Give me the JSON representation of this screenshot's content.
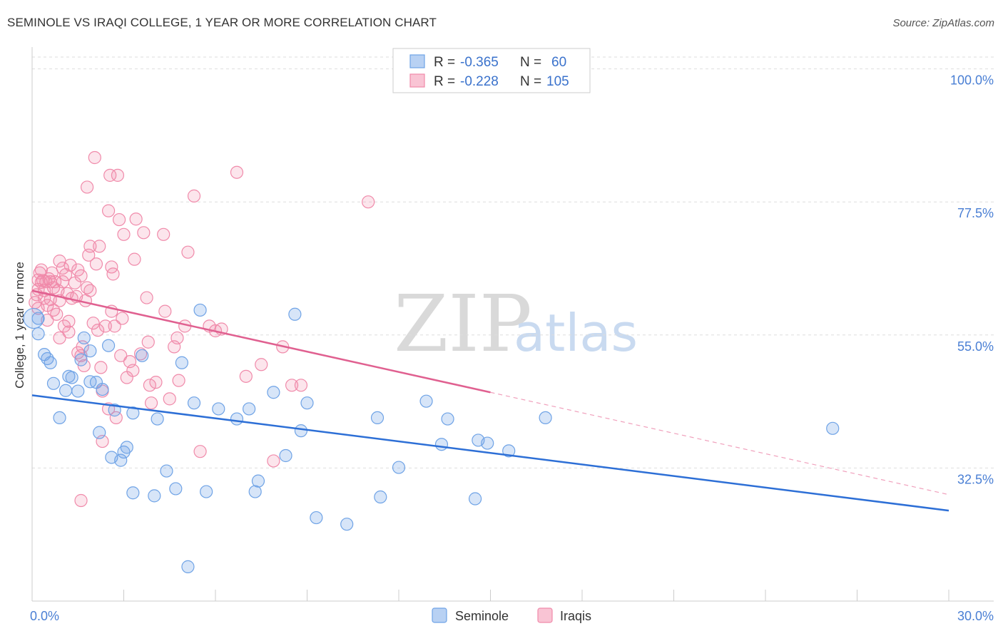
{
  "title": "SEMINOLE VS IRAQI COLLEGE, 1 YEAR OR MORE CORRELATION CHART",
  "source": "Source: ZipAtlas.com",
  "watermark": {
    "zip": "ZIP",
    "atlas": "atlas"
  },
  "colors": {
    "blue": "#6fa3e6",
    "blue_line": "#2d6fd6",
    "pink": "#f08aaa",
    "pink_line": "#e06090"
  },
  "legend": {
    "r_label": "R =",
    "n_label": "N =",
    "rows": [
      {
        "name": "Seminole",
        "r": "-0.365",
        "n": "60"
      },
      {
        "name": "Iraqis",
        "r": "-0.228",
        "n": "105"
      }
    ]
  },
  "chart_data": {
    "type": "scatter",
    "title": "SEMINOLE VS IRAQI COLLEGE, 1 YEAR OR MORE CORRELATION CHART",
    "xlabel": "",
    "ylabel": "College, 1 year or more",
    "xlim": [
      0,
      30
    ],
    "ylim": [
      10,
      102
    ],
    "x_tick_labels": [
      "0.0%",
      "30.0%"
    ],
    "y_ticks": [
      32.5,
      55.0,
      77.5,
      100.0
    ],
    "y_tick_labels": [
      "32.5%",
      "55.0%",
      "77.5%",
      "100.0%"
    ],
    "series": [
      {
        "name": "Seminole",
        "trend": {
          "x0": 0,
          "y0": 44.8,
          "x1": 30,
          "y1": 25.3
        },
        "points": [
          [
            0.2,
            57.8
          ],
          [
            0.2,
            55.2
          ],
          [
            0.4,
            51.7
          ],
          [
            0.5,
            51.0
          ],
          [
            0.6,
            50.3
          ],
          [
            0.7,
            46.8
          ],
          [
            0.9,
            41.0
          ],
          [
            1.1,
            45.6
          ],
          [
            1.2,
            48.0
          ],
          [
            1.3,
            47.8
          ],
          [
            1.5,
            45.5
          ],
          [
            1.6,
            50.8
          ],
          [
            1.7,
            54.5
          ],
          [
            1.9,
            47.1
          ],
          [
            1.9,
            52.3
          ],
          [
            2.1,
            47.0
          ],
          [
            2.2,
            38.5
          ],
          [
            2.3,
            45.8
          ],
          [
            2.5,
            53.2
          ],
          [
            2.6,
            34.3
          ],
          [
            2.7,
            42.3
          ],
          [
            2.9,
            33.8
          ],
          [
            3.0,
            35.2
          ],
          [
            3.1,
            36.0
          ],
          [
            3.3,
            41.8
          ],
          [
            3.3,
            28.3
          ],
          [
            3.6,
            51.5
          ],
          [
            4.0,
            27.8
          ],
          [
            4.1,
            40.8
          ],
          [
            4.4,
            32.0
          ],
          [
            4.7,
            29.0
          ],
          [
            4.9,
            50.3
          ],
          [
            5.1,
            15.8
          ],
          [
            5.3,
            43.5
          ],
          [
            5.5,
            59.2
          ],
          [
            5.7,
            28.5
          ],
          [
            6.1,
            42.5
          ],
          [
            6.7,
            40.8
          ],
          [
            7.1,
            42.5
          ],
          [
            7.3,
            28.5
          ],
          [
            7.4,
            30.3
          ],
          [
            7.9,
            45.3
          ],
          [
            8.3,
            34.6
          ],
          [
            8.6,
            58.5
          ],
          [
            8.8,
            38.8
          ],
          [
            9.0,
            43.5
          ],
          [
            9.3,
            24.1
          ],
          [
            10.3,
            23.0
          ],
          [
            11.3,
            41.0
          ],
          [
            11.4,
            27.6
          ],
          [
            12.0,
            32.6
          ],
          [
            12.9,
            43.8
          ],
          [
            13.4,
            36.5
          ],
          [
            13.6,
            40.8
          ],
          [
            14.5,
            27.3
          ],
          [
            14.6,
            37.2
          ],
          [
            14.9,
            36.7
          ],
          [
            15.6,
            35.4
          ],
          [
            16.8,
            41.0
          ],
          [
            26.2,
            39.2
          ]
        ]
      },
      {
        "name": "Iraqis",
        "trend": {
          "x0": 0,
          "y0": 62.5,
          "x1": 15.0,
          "y1": 45.3
        },
        "trend_dashed": {
          "x0": 15.0,
          "y0": 45.3,
          "x1": 30,
          "y1": 28.0
        },
        "points": [
          [
            0.1,
            60.5
          ],
          [
            0.15,
            61.8
          ],
          [
            0.2,
            62.7
          ],
          [
            0.2,
            59.5
          ],
          [
            0.2,
            64.3
          ],
          [
            0.25,
            65.5
          ],
          [
            0.3,
            66.0
          ],
          [
            0.3,
            63.9
          ],
          [
            0.35,
            64.2
          ],
          [
            0.4,
            62.5
          ],
          [
            0.4,
            61.2
          ],
          [
            0.45,
            64.0
          ],
          [
            0.5,
            60.0
          ],
          [
            0.5,
            57.5
          ],
          [
            0.55,
            64.5
          ],
          [
            0.6,
            61.0
          ],
          [
            0.6,
            64.0
          ],
          [
            0.65,
            65.5
          ],
          [
            0.7,
            59.2
          ],
          [
            0.7,
            63.0
          ],
          [
            0.75,
            64.0
          ],
          [
            0.8,
            58.5
          ],
          [
            0.85,
            62.5
          ],
          [
            0.9,
            60.8
          ],
          [
            0.9,
            67.5
          ],
          [
            1.0,
            64.0
          ],
          [
            1.0,
            66.3
          ],
          [
            1.05,
            56.5
          ],
          [
            1.1,
            65.2
          ],
          [
            1.15,
            62.0
          ],
          [
            1.2,
            57.3
          ],
          [
            1.25,
            66.8
          ],
          [
            1.3,
            61.2
          ],
          [
            1.4,
            63.8
          ],
          [
            1.45,
            61.5
          ],
          [
            1.5,
            66.0
          ],
          [
            1.5,
            52.0
          ],
          [
            1.6,
            65.0
          ],
          [
            1.6,
            51.5
          ],
          [
            1.65,
            53.0
          ],
          [
            1.7,
            49.8
          ],
          [
            1.75,
            60.8
          ],
          [
            1.8,
            63.0
          ],
          [
            1.85,
            68.5
          ],
          [
            1.9,
            62.5
          ],
          [
            1.9,
            70.0
          ],
          [
            2.0,
            57.0
          ],
          [
            2.05,
            85.0
          ],
          [
            2.1,
            67.0
          ],
          [
            2.15,
            55.8
          ],
          [
            2.2,
            70.0
          ],
          [
            2.25,
            49.5
          ],
          [
            2.3,
            37.0
          ],
          [
            2.3,
            45.5
          ],
          [
            2.4,
            56.5
          ],
          [
            2.5,
            42.5
          ],
          [
            2.5,
            76.0
          ],
          [
            2.55,
            82.0
          ],
          [
            2.6,
            66.5
          ],
          [
            2.65,
            65.3
          ],
          [
            2.7,
            56.5
          ],
          [
            2.75,
            41.0
          ],
          [
            2.8,
            82.0
          ],
          [
            2.85,
            74.5
          ],
          [
            2.9,
            51.5
          ],
          [
            2.95,
            57.8
          ],
          [
            3.0,
            72.0
          ],
          [
            3.1,
            47.8
          ],
          [
            3.2,
            50.5
          ],
          [
            3.35,
            67.8
          ],
          [
            3.4,
            74.6
          ],
          [
            3.55,
            51.8
          ],
          [
            3.65,
            72.3
          ],
          [
            3.75,
            61.3
          ],
          [
            3.8,
            53.8
          ],
          [
            3.85,
            46.5
          ],
          [
            3.9,
            43.5
          ],
          [
            4.05,
            47.0
          ],
          [
            4.3,
            72.0
          ],
          [
            4.35,
            59.0
          ],
          [
            4.5,
            44.2
          ],
          [
            4.65,
            53.0
          ],
          [
            4.75,
            54.5
          ],
          [
            4.8,
            47.3
          ],
          [
            5.0,
            56.5
          ],
          [
            5.1,
            69.0
          ],
          [
            5.3,
            78.5
          ],
          [
            5.5,
            35.3
          ],
          [
            5.8,
            56.5
          ],
          [
            6.0,
            55.7
          ],
          [
            6.2,
            56.0
          ],
          [
            6.7,
            82.5
          ],
          [
            7.0,
            48.0
          ],
          [
            7.5,
            50.0
          ],
          [
            7.9,
            33.7
          ],
          [
            8.2,
            53.0
          ],
          [
            8.5,
            46.5
          ],
          [
            8.8,
            46.5
          ],
          [
            11.0,
            77.5
          ],
          [
            1.6,
            27.0
          ],
          [
            1.8,
            80.0
          ],
          [
            1.2,
            55.5
          ],
          [
            0.9,
            54.5
          ],
          [
            2.6,
            59.0
          ],
          [
            3.3,
            49.0
          ]
        ]
      }
    ]
  }
}
